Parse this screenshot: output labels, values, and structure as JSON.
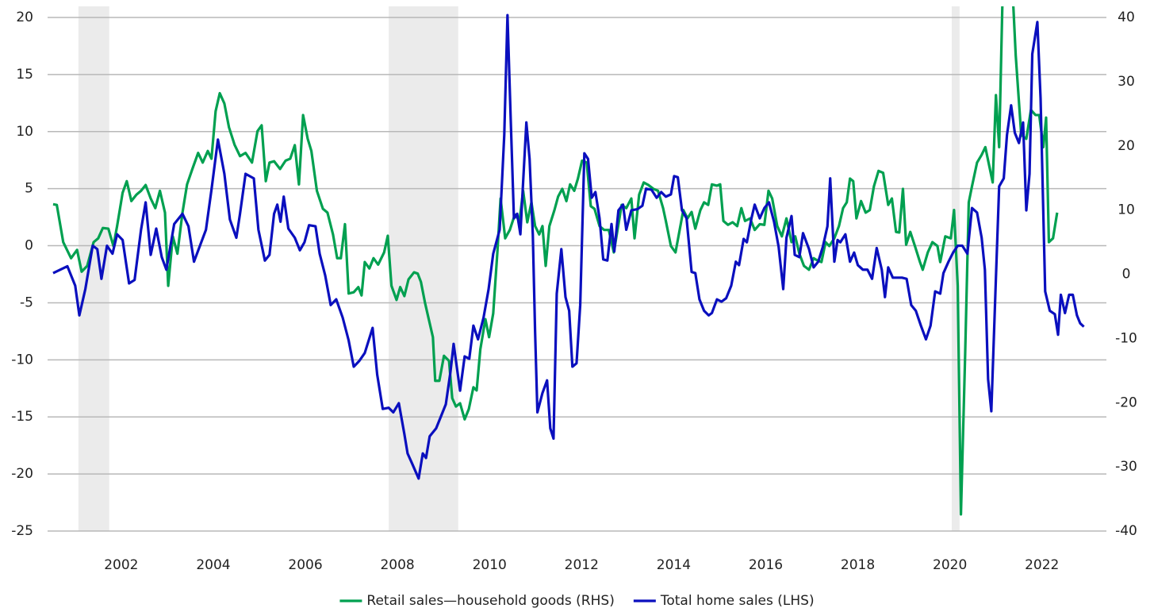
{
  "chart_data": {
    "type": "line",
    "xlim": [
      2000.4,
      2023.4
    ],
    "xticks": [
      2002,
      2004,
      2006,
      2008,
      2010,
      2012,
      2014,
      2016,
      2018,
      2020,
      2022
    ],
    "ylim": [
      -25,
      20
    ],
    "yticks": [
      20,
      15,
      10,
      5,
      0,
      -5,
      -10,
      -15,
      -20,
      -25
    ],
    "y2lim": [
      -40,
      40
    ],
    "y2ticks": [
      40,
      30,
      20,
      10,
      0,
      -10,
      -20,
      -30,
      -40
    ],
    "grid": true,
    "legend": "bottom",
    "shaded_periods": [
      [
        2001.07,
        2001.74
      ],
      [
        2007.81,
        2009.32
      ],
      [
        2020.04,
        2020.21
      ]
    ],
    "shaded_color": "#ebebeb",
    "series": [
      {
        "name": "Retail sales—household goods (RHS)",
        "color": "#00a050",
        "axis": "y2",
        "x": [
          2000.52,
          2000.6,
          2000.74,
          2000.91,
          2001.04,
          2001.14,
          2001.26,
          2001.4,
          2001.5,
          2001.6,
          2001.72,
          2001.83,
          2001.91,
          2002.03,
          2002.12,
          2002.22,
          2002.33,
          2002.43,
          2002.53,
          2002.64,
          2002.74,
          2002.84,
          2002.95,
          2003.02,
          2003.12,
          2003.22,
          2003.33,
          2003.43,
          2003.55,
          2003.67,
          2003.77,
          2003.88,
          2003.96,
          2004.05,
          2004.14,
          2004.24,
          2004.34,
          2004.46,
          2004.58,
          2004.7,
          2004.84,
          2004.96,
          2005.05,
          2005.14,
          2005.22,
          2005.32,
          2005.45,
          2005.57,
          2005.67,
          2005.77,
          2005.86,
          2005.95,
          2006.05,
          2006.13,
          2006.25,
          2006.38,
          2006.48,
          2006.6,
          2006.69,
          2006.77,
          2006.86,
          2006.94,
          2007.05,
          2007.15,
          2007.22,
          2007.29,
          2007.39,
          2007.48,
          2007.58,
          2007.71,
          2007.79,
          2007.87,
          2007.98,
          2008.06,
          2008.15,
          2008.24,
          2008.36,
          2008.44,
          2008.51,
          2008.6,
          2008.68,
          2008.77,
          2008.82,
          2008.91,
          2009.01,
          2009.12,
          2009.19,
          2009.27,
          2009.36,
          2009.46,
          2009.55,
          2009.65,
          2009.72,
          2009.8,
          2009.91,
          2009.99,
          2010.08,
          2010.17,
          2010.24,
          2010.34,
          2010.44,
          2010.55,
          2010.65,
          2010.73,
          2010.82,
          2010.91,
          2010.99,
          2011.08,
          2011.15,
          2011.22,
          2011.3,
          2011.41,
          2011.49,
          2011.58,
          2011.67,
          2011.75,
          2011.84,
          2011.92,
          2012.01,
          2012.11,
          2012.2,
          2012.28,
          2012.39,
          2012.49,
          2012.59,
          2012.7,
          2012.78,
          2012.87,
          2012.97,
          2013.08,
          2013.15,
          2013.25,
          2013.35,
          2013.45,
          2013.56,
          2013.66,
          2013.77,
          2013.83,
          2013.94,
          2014.04,
          2014.13,
          2014.21,
          2014.3,
          2014.39,
          2014.47,
          2014.58,
          2014.66,
          2014.75,
          2014.83,
          2014.94,
          2015.01,
          2015.08,
          2015.18,
          2015.28,
          2015.38,
          2015.47,
          2015.55,
          2015.66,
          2015.76,
          2015.87,
          2015.97,
          2016.06,
          2016.14,
          2016.25,
          2016.35,
          2016.45,
          2016.56,
          2016.64,
          2016.73,
          2016.83,
          2016.94,
          2017.04,
          2017.11,
          2017.21,
          2017.3,
          2017.38,
          2017.49,
          2017.59,
          2017.68,
          2017.76,
          2017.83,
          2017.9,
          2017.97,
          2018.07,
          2018.17,
          2018.26,
          2018.35,
          2018.45,
          2018.55,
          2018.66,
          2018.74,
          2018.83,
          2018.9,
          2018.98,
          2019.05,
          2019.14,
          2019.24,
          2019.35,
          2019.41,
          2019.52,
          2019.62,
          2019.73,
          2019.79,
          2019.9,
          2020.02,
          2020.09,
          2020.17,
          2020.24,
          2020.33,
          2020.41,
          2020.48,
          2020.59,
          2020.69,
          2020.77,
          2020.86,
          2020.93,
          2021.0,
          2021.07,
          2021.14,
          2021.2,
          2021.29,
          2021.38,
          2021.43,
          2021.55,
          2021.66,
          2021.76,
          2021.86,
          2021.94,
          2022.03,
          2022.09,
          2022.15,
          2022.24,
          2022.33
        ],
        "values": [
          10.9,
          10.8,
          5.0,
          2.5,
          3.8,
          0.4,
          1.3,
          5.0,
          5.6,
          7.2,
          7.1,
          4.4,
          7.5,
          12.7,
          14.5,
          11.4,
          12.4,
          13.0,
          13.9,
          11.8,
          10.3,
          13.0,
          9.6,
          -1.8,
          5.9,
          3.2,
          9.6,
          14.0,
          16.5,
          18.9,
          17.4,
          19.2,
          18.0,
          25.4,
          28.2,
          26.6,
          22.9,
          20.2,
          18.4,
          18.9,
          17.4,
          22.3,
          23.2,
          14.5,
          17.4,
          17.6,
          16.4,
          17.7,
          18.0,
          20.1,
          14.0,
          24.8,
          21.1,
          19.2,
          13.0,
          10.2,
          9.6,
          6.2,
          2.5,
          2.5,
          7.8,
          -3.0,
          -2.8,
          -2.0,
          -3.3,
          1.9,
          0.9,
          2.5,
          1.5,
          3.4,
          6.0,
          -1.8,
          -4.0,
          -2.0,
          -3.4,
          -0.8,
          0.3,
          0.1,
          -1.2,
          -4.5,
          -7.0,
          -9.8,
          -16.6,
          -16.6,
          -12.7,
          -13.5,
          -19.3,
          -20.6,
          -20.1,
          -22.6,
          -21.0,
          -17.6,
          -18.1,
          -11.7,
          -7.0,
          -9.8,
          -6.1,
          3.4,
          11.8,
          5.6,
          6.9,
          9.3,
          8.3,
          13.0,
          8.1,
          11.2,
          7.5,
          6.2,
          7.5,
          1.3,
          7.5,
          10.0,
          12.1,
          13.3,
          11.4,
          14.0,
          13.0,
          14.9,
          17.7,
          17.4,
          10.6,
          10.2,
          7.5,
          6.9,
          6.9,
          3.4,
          6.9,
          10.8,
          10.3,
          11.8,
          5.6,
          12.4,
          14.3,
          13.9,
          13.3,
          13.0,
          10.3,
          8.3,
          4.4,
          3.4,
          6.9,
          10.0,
          8.7,
          9.7,
          7.1,
          10.0,
          11.2,
          10.8,
          14.0,
          13.8,
          14.0,
          8.3,
          7.7,
          8.1,
          7.5,
          10.3,
          8.3,
          8.7,
          6.9,
          7.8,
          7.7,
          13.0,
          11.8,
          7.5,
          5.9,
          8.7,
          5.0,
          5.9,
          3.2,
          1.3,
          0.7,
          2.5,
          2.2,
          1.9,
          5.0,
          4.4,
          5.6,
          7.5,
          10.3,
          11.2,
          14.9,
          14.5,
          8.7,
          11.4,
          9.6,
          10.0,
          13.7,
          16.1,
          15.8,
          10.8,
          11.8,
          6.6,
          6.5,
          13.3,
          4.6,
          6.6,
          4.4,
          1.9,
          0.7,
          3.4,
          5.0,
          4.4,
          1.9,
          5.9,
          5.6,
          10.0,
          -1.8,
          -37.4,
          -12.9,
          11.2,
          13.7,
          17.4,
          18.6,
          19.8,
          16.7,
          14.3,
          27.9,
          19.8,
          42,
          48,
          52,
          41.5,
          34.1,
          21.7,
          21.1,
          25.6,
          24.8,
          24.8,
          19.8,
          24.4,
          5.0,
          5.6,
          9.6
        ]
      },
      {
        "name": "Total home sales (LHS)",
        "color": "#0a0fbe",
        "axis": "y",
        "x": [
          2000.52,
          2000.83,
          2001.0,
          2001.09,
          2001.22,
          2001.38,
          2001.48,
          2001.57,
          2001.69,
          2001.81,
          2001.91,
          2002.03,
          2002.17,
          2002.29,
          2002.43,
          2002.53,
          2002.64,
          2002.76,
          2002.88,
          2002.98,
          2003.15,
          2003.33,
          2003.46,
          2003.58,
          2003.71,
          2003.84,
          2003.96,
          2004.1,
          2004.24,
          2004.36,
          2004.5,
          2004.58,
          2004.7,
          2004.88,
          2004.98,
          2005.12,
          2005.22,
          2005.32,
          2005.39,
          2005.46,
          2005.53,
          2005.63,
          2005.77,
          2005.88,
          2005.98,
          2006.08,
          2006.22,
          2006.31,
          2006.43,
          2006.55,
          2006.67,
          2006.81,
          2006.94,
          2007.05,
          2007.17,
          2007.29,
          2007.46,
          2007.56,
          2007.68,
          2007.81,
          2007.91,
          2008.03,
          2008.15,
          2008.22,
          2008.32,
          2008.46,
          2008.55,
          2008.62,
          2008.7,
          2008.84,
          2008.94,
          2009.05,
          2009.15,
          2009.22,
          2009.36,
          2009.46,
          2009.56,
          2009.65,
          2009.75,
          2009.87,
          2009.98,
          2010.08,
          2010.22,
          2010.32,
          2010.39,
          2010.46,
          2010.53,
          2010.6,
          2010.67,
          2010.73,
          2010.8,
          2010.87,
          2010.94,
          2010.99,
          2011.04,
          2011.15,
          2011.25,
          2011.32,
          2011.39,
          2011.46,
          2011.56,
          2011.65,
          2011.73,
          2011.8,
          2011.89,
          2011.97,
          2012.06,
          2012.14,
          2012.22,
          2012.3,
          2012.39,
          2012.47,
          2012.56,
          2012.65,
          2012.71,
          2012.8,
          2012.9,
          2012.97,
          2013.08,
          2013.21,
          2013.32,
          2013.4,
          2013.52,
          2013.63,
          2013.73,
          2013.83,
          2013.94,
          2014.01,
          2014.09,
          2014.18,
          2014.28,
          2014.39,
          2014.47,
          2014.56,
          2014.66,
          2014.76,
          2014.83,
          2014.94,
          2015.04,
          2015.14,
          2015.25,
          2015.35,
          2015.42,
          2015.52,
          2015.59,
          2015.69,
          2015.76,
          2015.87,
          2015.97,
          2016.07,
          2016.18,
          2016.28,
          2016.38,
          2016.45,
          2016.56,
          2016.63,
          2016.73,
          2016.81,
          2016.94,
          2017.04,
          2017.14,
          2017.24,
          2017.34,
          2017.4,
          2017.49,
          2017.56,
          2017.62,
          2017.73,
          2017.83,
          2017.92,
          2018.0,
          2018.11,
          2018.21,
          2018.31,
          2018.41,
          2018.52,
          2018.59,
          2018.66,
          2018.76,
          2018.86,
          2018.96,
          2019.06,
          2019.16,
          2019.26,
          2019.37,
          2019.48,
          2019.58,
          2019.68,
          2019.79,
          2019.86,
          2019.97,
          2020.07,
          2020.17,
          2020.27,
          2020.38,
          2020.48,
          2020.59,
          2020.69,
          2020.76,
          2020.83,
          2020.9,
          2021.0,
          2021.07,
          2021.17,
          2021.24,
          2021.33,
          2021.41,
          2021.5,
          2021.59,
          2021.66,
          2021.73,
          2021.79,
          2021.9,
          2021.97,
          2022.07,
          2022.17,
          2022.28,
          2022.35,
          2022.41,
          2022.5,
          2022.59,
          2022.67,
          2022.76,
          2022.83,
          2022.91
        ],
        "values": [
          -2.4,
          -1.8,
          -3.5,
          -6.1,
          -3.8,
          0,
          -0.3,
          -2.9,
          0,
          -0.7,
          1.0,
          0.5,
          -3.3,
          -3.0,
          1.4,
          3.8,
          -0.8,
          1.5,
          -1.0,
          -2.1,
          1.9,
          2.8,
          1.7,
          -1.4,
          0,
          1.4,
          4.9,
          9.3,
          6.3,
          2.3,
          0.7,
          2.8,
          6.3,
          5.9,
          1.4,
          -1.3,
          -0.8,
          2.8,
          3.6,
          2.1,
          4.3,
          1.5,
          0.7,
          -0.4,
          0.3,
          1.8,
          1.7,
          -0.7,
          -2.6,
          -5.2,
          -4.7,
          -6.3,
          -8.3,
          -10.6,
          -10.1,
          -9.4,
          -7.2,
          -11.3,
          -14.3,
          -14.2,
          -14.6,
          -13.8,
          -16.5,
          -18.2,
          -19.1,
          -20.4,
          -18.2,
          -18.6,
          -16.7,
          -16.0,
          -15.0,
          -13.9,
          -11.1,
          -8.6,
          -12.7,
          -9.7,
          -9.9,
          -7.0,
          -8.2,
          -6.3,
          -3.8,
          -0.7,
          1.4,
          9.7,
          20.2,
          11.1,
          2.4,
          2.8,
          1.0,
          5.6,
          10.8,
          7.6,
          1.0,
          -7.6,
          -14.6,
          -12.9,
          -11.8,
          -16.0,
          -16.9,
          -4.2,
          -0.3,
          -4.5,
          -5.7,
          -10.6,
          -10.3,
          -5.2,
          8.1,
          7.6,
          4.2,
          4.7,
          2.4,
          -1.2,
          -1.3,
          1.9,
          -0.5,
          3.1,
          3.6,
          1.4,
          3.1,
          3.2,
          3.5,
          5.0,
          4.9,
          4.2,
          4.7,
          4.3,
          4.5,
          6.1,
          6.0,
          3.1,
          2.4,
          -2.3,
          -2.4,
          -4.7,
          -5.7,
          -6.1,
          -5.9,
          -4.7,
          -4.9,
          -4.6,
          -3.5,
          -1.4,
          -1.7,
          0.6,
          0.3,
          2.4,
          3.6,
          2.4,
          3.3,
          3.8,
          2.1,
          -0.1,
          -3.8,
          0.7,
          2.6,
          -0.8,
          -1.0,
          1.1,
          -0.3,
          -1.9,
          -1.4,
          -0.1,
          1.7,
          5.9,
          -1.4,
          0.5,
          0.3,
          1.0,
          -1.4,
          -0.6,
          -1.7,
          -2.1,
          -2.1,
          -2.9,
          -0.2,
          -2.1,
          -4.5,
          -1.9,
          -2.8,
          -2.8,
          -2.8,
          -2.9,
          -5.2,
          -5.7,
          -7.0,
          -8.2,
          -7.0,
          -4.0,
          -4.2,
          -2.4,
          -1.4,
          -0.6,
          0,
          0,
          -0.7,
          3.3,
          2.9,
          0.7,
          -2.1,
          -11.7,
          -14.5,
          -2.8,
          5.2,
          5.9,
          9.7,
          12.3,
          9.9,
          9.0,
          10.8,
          3.1,
          6.3,
          16.8,
          19.6,
          12.9,
          -4.0,
          -5.7,
          -6.0,
          -7.8,
          -4.3,
          -5.9,
          -4.3,
          -4.3,
          -6.1,
          -6.8,
          -7.1
        ]
      }
    ]
  }
}
